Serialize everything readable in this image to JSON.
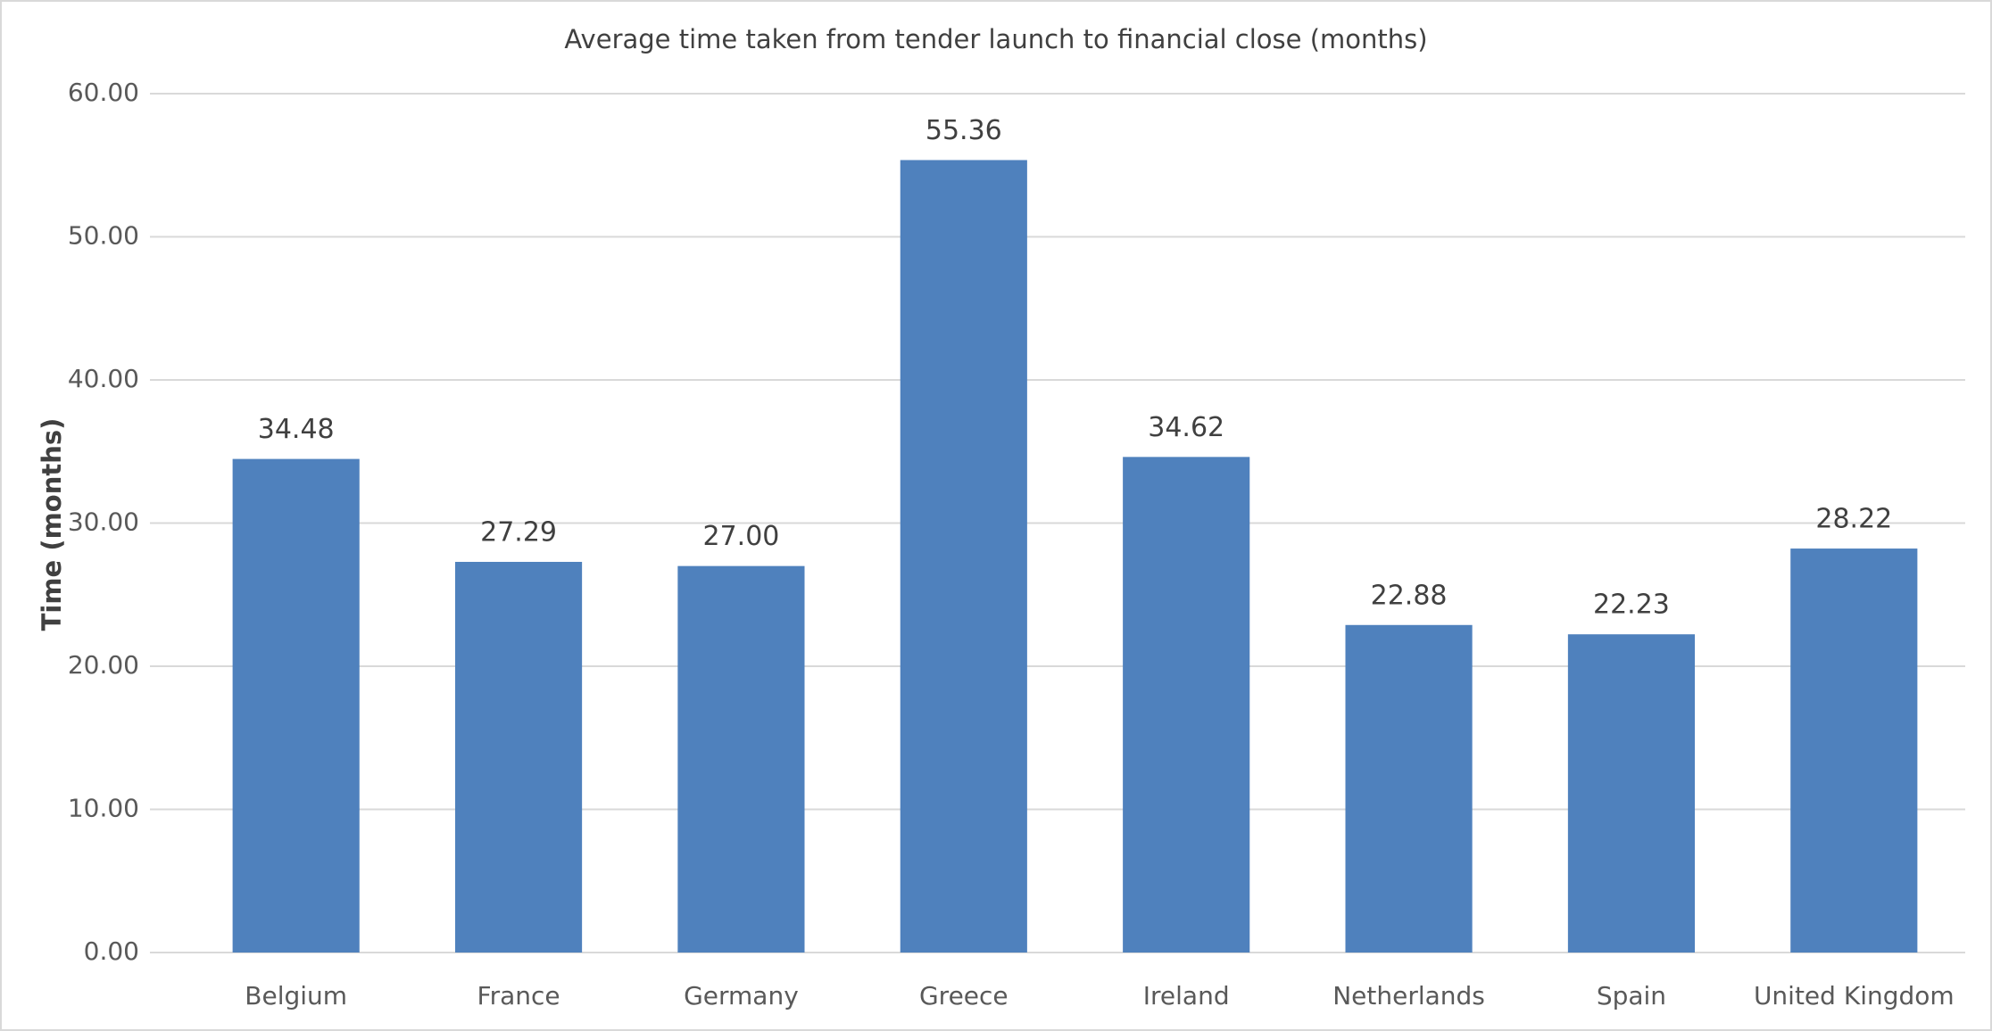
{
  "chart_data": {
    "type": "bar",
    "title": "Average time taken from tender launch to financial close (months)",
    "y_label": "Time (months)",
    "categories": [
      "Belgium",
      "France",
      "Germany",
      "Greece",
      "Ireland",
      "Netherlands",
      "Spain",
      "United Kingdom"
    ],
    "values": [
      34.48,
      27.29,
      27.0,
      55.36,
      34.62,
      22.88,
      22.23,
      28.22
    ],
    "value_labels": [
      "34.48",
      "27.29",
      "27.00",
      "55.36",
      "34.62",
      "22.88",
      "22.23",
      "28.22"
    ],
    "color": "#4f81bd",
    "ylim": [
      0,
      60
    ],
    "yticks": [
      {
        "value": 0,
        "label": "0.00"
      },
      {
        "value": 10,
        "label": "10.00"
      },
      {
        "value": 20,
        "label": "20.00"
      },
      {
        "value": 30,
        "label": "30.00"
      },
      {
        "value": 40,
        "label": "40.00"
      },
      {
        "value": 50,
        "label": "50.00"
      },
      {
        "value": 60,
        "label": "60.00"
      }
    ],
    "grid": true
  }
}
